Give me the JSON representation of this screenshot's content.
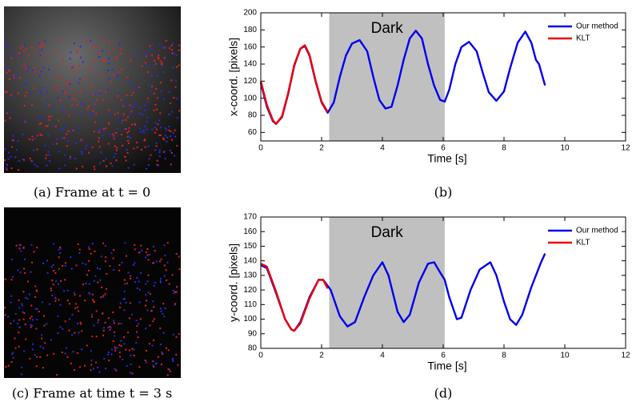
{
  "images": [
    {
      "caption": "(a) Frame at t = 0"
    },
    {
      "caption": "(c) Frame at time t = 3 s"
    }
  ],
  "chart_data": [
    {
      "type": "line",
      "caption": "(b)",
      "xlabel": "Time [s]",
      "ylabel": "x-coord. [pixels]",
      "xlim": [
        0,
        12
      ],
      "xticks": [
        0,
        2,
        4,
        6,
        8,
        10,
        12
      ],
      "ylim": [
        50,
        200
      ],
      "yticks": [
        60,
        80,
        100,
        120,
        140,
        160,
        180,
        200
      ],
      "shaded_region": {
        "x": [
          2.25,
          6.05
        ],
        "label": "Dark",
        "color": "#c0c0c0"
      },
      "legend": "top-right",
      "series": [
        {
          "name": "Our method",
          "color": "#0000ee",
          "x": [
            0,
            0.2,
            0.4,
            0.5,
            0.7,
            0.9,
            1.1,
            1.3,
            1.45,
            1.6,
            1.8,
            2.0,
            2.2,
            2.4,
            2.6,
            2.8,
            3.0,
            3.25,
            3.5,
            3.7,
            3.9,
            4.1,
            4.3,
            4.5,
            4.7,
            4.9,
            5.1,
            5.3,
            5.5,
            5.7,
            5.9,
            6.05,
            6.2,
            6.4,
            6.6,
            6.85,
            7.1,
            7.3,
            7.5,
            7.75,
            8.0,
            8.2,
            8.45,
            8.7,
            8.9,
            9.05,
            9.15,
            9.35
          ],
          "values": [
            118,
            90,
            73,
            70,
            78,
            105,
            138,
            158,
            161,
            150,
            120,
            95,
            83,
            95,
            125,
            150,
            164,
            168,
            155,
            125,
            98,
            88,
            90,
            115,
            145,
            170,
            179,
            170,
            140,
            115,
            98,
            96,
            110,
            140,
            160,
            166,
            155,
            130,
            107,
            97,
            108,
            135,
            165,
            178,
            165,
            145,
            140,
            115
          ]
        },
        {
          "name": "KLT",
          "color": "#ee0000",
          "x": [
            0,
            0.2,
            0.4,
            0.5,
            0.7,
            0.9,
            1.1,
            1.3,
            1.45,
            1.6,
            1.8,
            2.0,
            2.2
          ],
          "values": [
            120,
            92,
            74,
            70,
            79,
            106,
            139,
            158,
            162,
            151,
            121,
            96,
            84
          ]
        }
      ]
    },
    {
      "type": "line",
      "caption": "(d)",
      "xlabel": "Time [s]",
      "ylabel": "y-coord. [pixels]",
      "xlim": [
        0,
        12
      ],
      "xticks": [
        0,
        2,
        4,
        6,
        8,
        10,
        12
      ],
      "ylim": [
        80,
        170
      ],
      "yticks": [
        80,
        90,
        100,
        110,
        120,
        130,
        140,
        150,
        160,
        170
      ],
      "shaded_region": {
        "x": [
          2.25,
          6.05
        ],
        "label": "Dark",
        "color": "#c0c0c0"
      },
      "legend": "top-right",
      "series": [
        {
          "name": "Our method",
          "color": "#0000ee",
          "x": [
            0,
            0.2,
            0.5,
            0.8,
            1.0,
            1.1,
            1.3,
            1.6,
            1.9,
            2.05,
            2.3,
            2.6,
            2.85,
            3.1,
            3.4,
            3.7,
            4.0,
            4.2,
            4.5,
            4.7,
            4.9,
            5.2,
            5.5,
            5.7,
            5.9,
            6.05,
            6.2,
            6.45,
            6.6,
            6.9,
            7.2,
            7.55,
            7.75,
            8.0,
            8.2,
            8.4,
            8.6,
            8.9,
            9.2,
            9.35
          ],
          "values": [
            137,
            135,
            118,
            100,
            93,
            92,
            98,
            115,
            127,
            127,
            120,
            102,
            95,
            98,
            115,
            130,
            139,
            130,
            105,
            98,
            103,
            125,
            138,
            139,
            132,
            127,
            115,
            100,
            101,
            120,
            134,
            139,
            130,
            112,
            100,
            96,
            103,
            122,
            138,
            145
          ]
        },
        {
          "name": "KLT",
          "color": "#ee0000",
          "x": [
            0,
            0.2,
            0.5,
            0.8,
            1.0,
            1.1,
            1.3,
            1.6,
            1.9,
            2.05,
            2.2
          ],
          "values": [
            138,
            136,
            119,
            100,
            93,
            92,
            97,
            114,
            127,
            127,
            121
          ]
        }
      ]
    }
  ]
}
